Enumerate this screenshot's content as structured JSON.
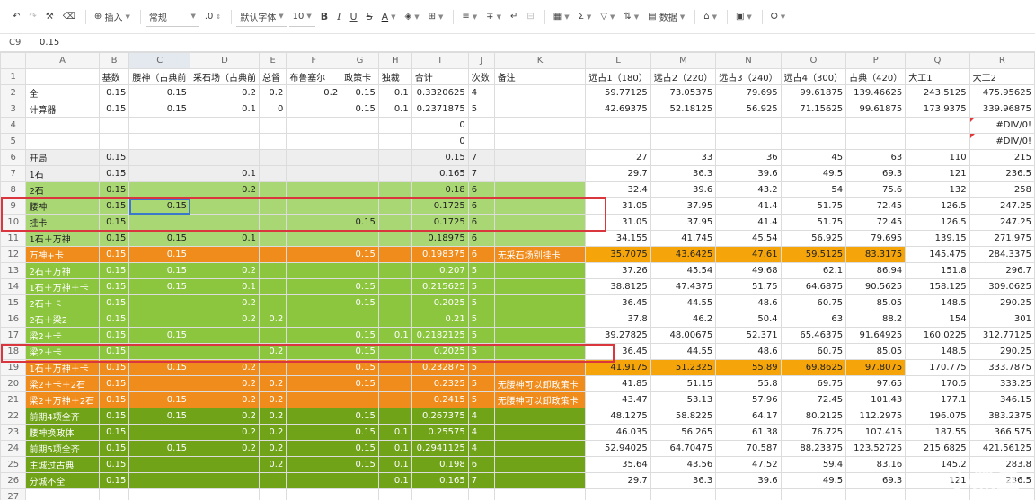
{
  "toolbar": {
    "insert": "插入",
    "format": "常规",
    "decimals": ".0",
    "font": "默认字体",
    "size": "10",
    "bold": "B",
    "italic": "I",
    "underline": "U",
    "strike": "S",
    "fontcolor": "A",
    "sum": "Σ",
    "data": "数据"
  },
  "formula_bar": {
    "cell_ref": "C9",
    "value": "0.15"
  },
  "columns": [
    "A",
    "B",
    "C",
    "D",
    "E",
    "F",
    "G",
    "H",
    "I",
    "J",
    "K",
    "L",
    "M",
    "N",
    "O",
    "P",
    "Q",
    "R"
  ],
  "selected_col_index": 2,
  "rows": [
    {
      "num": "1",
      "style": "",
      "cells": [
        "",
        "基数",
        "腰神（古典前",
        "采石场（古典前",
        "总督",
        "布鲁塞尔",
        "政策卡",
        "独裁",
        "合计",
        "次数",
        "备注",
        "远古1（180）",
        "远古2（220）",
        "远古3（240）",
        "远古4（300）",
        "古典（420）",
        "大工1",
        "大工2"
      ]
    },
    {
      "num": "2",
      "style": "",
      "cells": [
        "全",
        "0.15",
        "0.15",
        "0.2",
        "0.2",
        "0.2",
        "0.15",
        "0.1",
        "0.3320625",
        "4",
        "",
        "59.77125",
        "73.05375",
        "79.695",
        "99.61875",
        "139.46625",
        "243.5125",
        "475.95625"
      ]
    },
    {
      "num": "3",
      "style": "",
      "cells": [
        "计算器",
        "0.15",
        "0.15",
        "0.1",
        "0",
        "",
        "0.15",
        "0.1",
        "0.2371875",
        "5",
        "",
        "42.69375",
        "52.18125",
        "56.925",
        "71.15625",
        "99.61875",
        "173.9375",
        "339.96875"
      ]
    },
    {
      "num": "4",
      "style": "",
      "cells": [
        "",
        "",
        "",
        "",
        "",
        "",
        "",
        "",
        "0",
        "",
        "",
        "",
        "",
        "",
        "",
        "",
        "",
        "#DIV/0!"
      ]
    },
    {
      "num": "5",
      "style": "",
      "cells": [
        "",
        "",
        "",
        "",
        "",
        "",
        "",
        "",
        "0",
        "",
        "",
        "",
        "",
        "",
        "",
        "",
        "",
        "#DIV/0!"
      ]
    },
    {
      "num": "6",
      "style": "gray",
      "cells": [
        "开局",
        "0.15",
        "",
        "",
        "",
        "",
        "",
        "",
        "0.15",
        "7",
        "",
        "27",
        "33",
        "36",
        "45",
        "63",
        "110",
        "215"
      ]
    },
    {
      "num": "7",
      "style": "gray",
      "cells": [
        "1石",
        "0.15",
        "",
        "0.1",
        "",
        "",
        "",
        "",
        "0.165",
        "7",
        "",
        "29.7",
        "36.3",
        "39.6",
        "49.5",
        "69.3",
        "121",
        "236.5"
      ]
    },
    {
      "num": "8",
      "style": "lt",
      "cells": [
        "2石",
        "0.15",
        "",
        "0.2",
        "",
        "",
        "",
        "",
        "0.18",
        "6",
        "",
        "32.4",
        "39.6",
        "43.2",
        "54",
        "75.6",
        "132",
        "258"
      ]
    },
    {
      "num": "9",
      "style": "lt",
      "cells": [
        "腰神",
        "0.15",
        "0.15",
        "",
        "",
        "",
        "",
        "",
        "0.1725",
        "6",
        "",
        "31.05",
        "37.95",
        "41.4",
        "51.75",
        "72.45",
        "126.5",
        "247.25"
      ]
    },
    {
      "num": "10",
      "style": "lt",
      "cells": [
        "挂卡",
        "0.15",
        "",
        "",
        "",
        "",
        "0.15",
        "",
        "0.1725",
        "6",
        "",
        "31.05",
        "37.95",
        "41.4",
        "51.75",
        "72.45",
        "126.5",
        "247.25"
      ]
    },
    {
      "num": "11",
      "style": "lt",
      "cells": [
        "1石＋万神",
        "0.15",
        "0.15",
        "0.1",
        "",
        "",
        "",
        "",
        "0.18975",
        "6",
        "",
        "34.155",
        "41.745",
        "45.54",
        "56.925",
        "79.695",
        "139.15",
        "271.975"
      ]
    },
    {
      "num": "12",
      "style": "or",
      "cells": [
        "万神+卡",
        "0.15",
        "0.15",
        "",
        "",
        "",
        "0.15",
        "",
        "0.198375",
        "6",
        "无采石场别挂卡",
        "35.7075",
        "43.6425",
        "47.61",
        "59.5125",
        "83.3175",
        "145.475",
        "284.3375"
      ]
    },
    {
      "num": "13",
      "style": "md",
      "cells": [
        "2石＋万神",
        "0.15",
        "0.15",
        "0.2",
        "",
        "",
        "",
        "",
        "0.207",
        "5",
        "",
        "37.26",
        "45.54",
        "49.68",
        "62.1",
        "86.94",
        "151.8",
        "296.7"
      ]
    },
    {
      "num": "14",
      "style": "md",
      "cells": [
        "1石＋万神＋卡",
        "0.15",
        "0.15",
        "0.1",
        "",
        "",
        "0.15",
        "",
        "0.215625",
        "5",
        "",
        "38.8125",
        "47.4375",
        "51.75",
        "64.6875",
        "90.5625",
        "158.125",
        "309.0625"
      ]
    },
    {
      "num": "15",
      "style": "md",
      "cells": [
        "2石＋卡",
        "0.15",
        "",
        "0.2",
        "",
        "",
        "0.15",
        "",
        "0.2025",
        "5",
        "",
        "36.45",
        "44.55",
        "48.6",
        "60.75",
        "85.05",
        "148.5",
        "290.25"
      ]
    },
    {
      "num": "16",
      "style": "md",
      "cells": [
        "2石＋梁2",
        "0.15",
        "",
        "0.2",
        "0.2",
        "",
        "",
        "",
        "0.21",
        "5",
        "",
        "37.8",
        "46.2",
        "50.4",
        "63",
        "88.2",
        "154",
        "301"
      ]
    },
    {
      "num": "17",
      "style": "md",
      "cells": [
        "梁2＋卡",
        "0.15",
        "0.15",
        "",
        "",
        "",
        "0.15",
        "0.1",
        "0.2182125",
        "5",
        "",
        "39.27825",
        "48.00675",
        "52.371",
        "65.46375",
        "91.64925",
        "160.0225",
        "312.77125"
      ]
    },
    {
      "num": "18",
      "style": "md",
      "cells": [
        "梁2＋卡",
        "0.15",
        "",
        "",
        "0.2",
        "",
        "0.15",
        "",
        "0.2025",
        "5",
        "",
        "36.45",
        "44.55",
        "48.6",
        "60.75",
        "85.05",
        "148.5",
        "290.25"
      ]
    },
    {
      "num": "19",
      "style": "or",
      "cells": [
        "1石＋万神＋卡",
        "0.15",
        "0.15",
        "0.2",
        "",
        "",
        "0.15",
        "",
        "0.232875",
        "5",
        "",
        "41.9175",
        "51.2325",
        "55.89",
        "69.8625",
        "97.8075",
        "170.775",
        "333.7875"
      ]
    },
    {
      "num": "20",
      "style": "or",
      "cells": [
        "梁2＋卡＋2石",
        "0.15",
        "",
        "0.2",
        "0.2",
        "",
        "0.15",
        "",
        "0.2325",
        "5",
        "无腰神可以卸政策卡",
        "41.85",
        "51.15",
        "55.8",
        "69.75",
        "97.65",
        "170.5",
        "333.25"
      ]
    },
    {
      "num": "21",
      "style": "or",
      "cells": [
        "梁2＋万神＋2石",
        "0.15",
        "0.15",
        "0.2",
        "0.2",
        "",
        "",
        "",
        "0.2415",
        "5",
        "无腰神可以卸政策卡",
        "43.47",
        "53.13",
        "57.96",
        "72.45",
        "101.43",
        "177.1",
        "346.15"
      ]
    },
    {
      "num": "22",
      "style": "dk",
      "cells": [
        "前期4项全齐",
        "0.15",
        "0.15",
        "0.2",
        "0.2",
        "",
        "0.15",
        "",
        "0.267375",
        "4",
        "",
        "48.1275",
        "58.8225",
        "64.17",
        "80.2125",
        "112.2975",
        "196.075",
        "383.2375"
      ]
    },
    {
      "num": "23",
      "style": "dk",
      "cells": [
        "腰神换政体",
        "0.15",
        "",
        "0.2",
        "0.2",
        "",
        "0.15",
        "0.1",
        "0.25575",
        "4",
        "",
        "46.035",
        "56.265",
        "61.38",
        "76.725",
        "107.415",
        "187.55",
        "366.575"
      ]
    },
    {
      "num": "24",
      "style": "dk",
      "cells": [
        "前期5项全齐",
        "0.15",
        "0.15",
        "0.2",
        "0.2",
        "",
        "0.15",
        "0.1",
        "0.2941125",
        "4",
        "",
        "52.94025",
        "64.70475",
        "70.587",
        "88.23375",
        "123.52725",
        "215.6825",
        "421.56125"
      ]
    },
    {
      "num": "25",
      "style": "dk",
      "cells": [
        "主城过古典",
        "0.15",
        "",
        "",
        "0.2",
        "",
        "0.15",
        "0.1",
        "0.198",
        "6",
        "",
        "35.64",
        "43.56",
        "47.52",
        "59.4",
        "83.16",
        "145.2",
        "283.8"
      ]
    },
    {
      "num": "26",
      "style": "dk",
      "cells": [
        "分城不全",
        "0.15",
        "",
        "",
        "",
        "",
        "",
        "0.1",
        "0.165",
        "7",
        "",
        "29.7",
        "36.3",
        "39.6",
        "49.5",
        "69.3",
        "121",
        "236.5"
      ]
    },
    {
      "num": "27",
      "style": "",
      "cells": [
        "",
        "",
        "",
        "",
        "",
        "",
        "",
        "",
        "",
        "",
        "",
        "",
        "",
        "",
        "",
        "",
        "",
        ""
      ]
    }
  ]
}
